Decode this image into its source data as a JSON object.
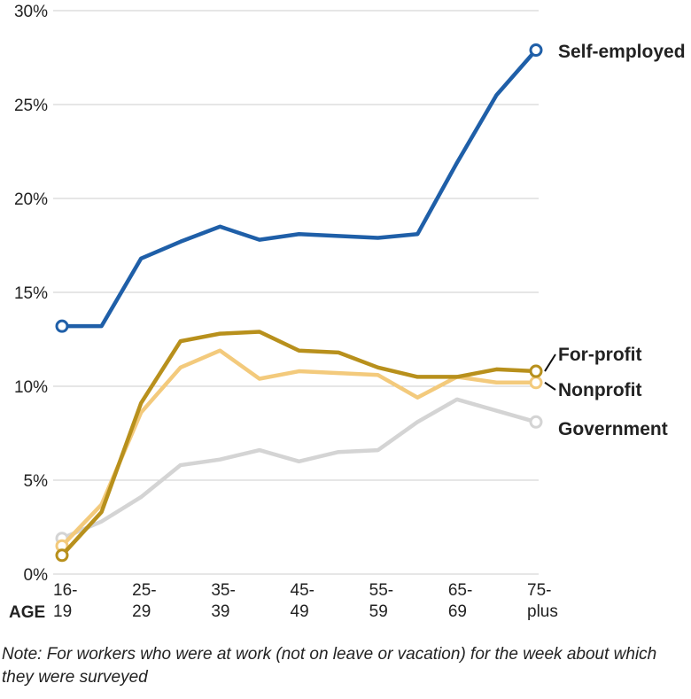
{
  "chart_data": {
    "type": "line",
    "x_label": "AGE",
    "note": "Note: For workers who were at work (not on leave or vacation) for the week about which they were surveyed",
    "categories": [
      "16-\n19",
      null,
      "25-\n29",
      null,
      "35-\n39",
      null,
      "45-\n49",
      null,
      "55-\n59",
      null,
      "65-\n69",
      null,
      "75-\nplus"
    ],
    "ylim": [
      0,
      30
    ],
    "yticks": [
      {
        "value": 0,
        "label": "0%"
      },
      {
        "value": 5,
        "label": "5%"
      },
      {
        "value": 10,
        "label": "10%"
      },
      {
        "value": 15,
        "label": "15%"
      },
      {
        "value": 20,
        "label": "20%"
      },
      {
        "value": 25,
        "label": "25%"
      },
      {
        "value": 30,
        "label": "30%"
      }
    ],
    "grid": true,
    "series": [
      {
        "name": "Government",
        "color": "#d4d4d4",
        "values": [
          1.9,
          2.8,
          4.1,
          5.8,
          6.1,
          6.6,
          6.0,
          6.5,
          6.6,
          8.1,
          9.3,
          8.7,
          8.1
        ]
      },
      {
        "name": "Nonprofit",
        "color": "#f3ca7c",
        "values": [
          1.5,
          3.7,
          8.6,
          11.0,
          11.9,
          10.4,
          10.8,
          10.7,
          10.6,
          9.4,
          10.5,
          10.2,
          10.2
        ]
      },
      {
        "name": "For-profit",
        "color": "#b8901c",
        "values": [
          1.0,
          3.3,
          9.1,
          12.4,
          12.8,
          12.9,
          11.9,
          11.8,
          11.0,
          10.5,
          10.5,
          10.9,
          10.8
        ]
      },
      {
        "name": "Self-employed",
        "color": "#1f5fa8",
        "values": [
          13.2,
          13.2,
          16.8,
          17.7,
          18.5,
          17.8,
          18.1,
          18.0,
          17.9,
          18.1,
          21.9,
          25.5,
          27.9
        ]
      }
    ]
  }
}
